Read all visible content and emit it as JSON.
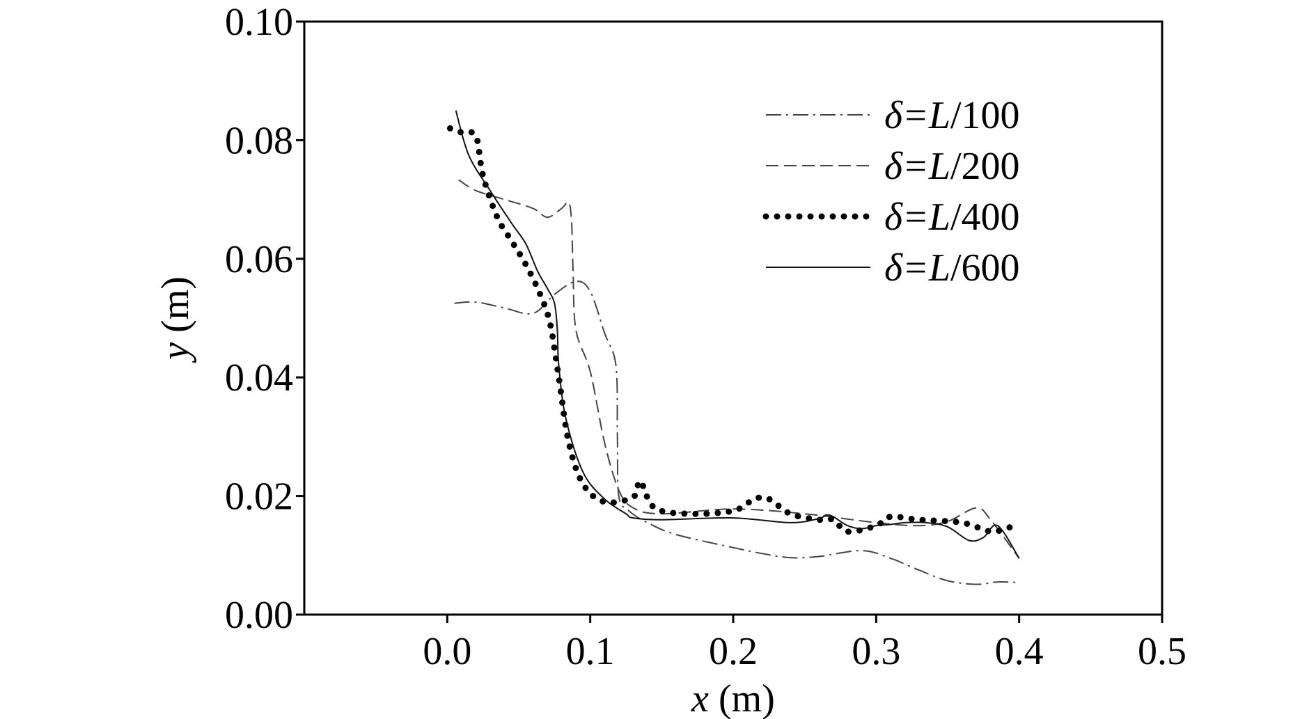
{
  "chart_data": {
    "type": "line",
    "xlabel": {
      "var": "x",
      "unit": " (m)"
    },
    "ylabel": {
      "var": "y",
      "unit": " (m)"
    },
    "xlim": [
      -0.1,
      0.5
    ],
    "ylim": [
      0.0,
      0.1
    ],
    "x_ticks": [
      {
        "value": 0.0,
        "label": "0.0"
      },
      {
        "value": 0.1,
        "label": "0.1"
      },
      {
        "value": 0.2,
        "label": "0.2"
      },
      {
        "value": 0.3,
        "label": "0.3"
      },
      {
        "value": 0.4,
        "label": "0.4"
      },
      {
        "value": 0.5,
        "label": "0.5"
      }
    ],
    "y_ticks": [
      {
        "value": 0.0,
        "label": "0.00"
      },
      {
        "value": 0.02,
        "label": "0.02"
      },
      {
        "value": 0.04,
        "label": "0.04"
      },
      {
        "value": 0.06,
        "label": "0.06"
      },
      {
        "value": 0.08,
        "label": "0.08"
      },
      {
        "value": 0.1,
        "label": "0.10"
      }
    ],
    "grid": false,
    "legend_position": "top-right",
    "series": [
      {
        "name": {
          "pre": "δ=",
          "it": "L",
          "post": "/100"
        },
        "style": "dashdot",
        "color": "#444444",
        "points": [
          [
            0.005,
            0.0525
          ],
          [
            0.02,
            0.0527
          ],
          [
            0.04,
            0.0517
          ],
          [
            0.06,
            0.0508
          ],
          [
            0.075,
            0.054
          ],
          [
            0.09,
            0.0562
          ],
          [
            0.1,
            0.0545
          ],
          [
            0.11,
            0.0475
          ],
          [
            0.118,
            0.042
          ],
          [
            0.119,
            0.03
          ],
          [
            0.12,
            0.02
          ],
          [
            0.127,
            0.0175
          ],
          [
            0.14,
            0.0155
          ],
          [
            0.16,
            0.0135
          ],
          [
            0.2,
            0.0113
          ],
          [
            0.22,
            0.0103
          ],
          [
            0.24,
            0.0096
          ],
          [
            0.26,
            0.0098
          ],
          [
            0.29,
            0.0108
          ],
          [
            0.31,
            0.0095
          ],
          [
            0.33,
            0.0075
          ],
          [
            0.35,
            0.0057
          ],
          [
            0.37,
            0.0051
          ],
          [
            0.385,
            0.0055
          ],
          [
            0.4,
            0.0054
          ]
        ]
      },
      {
        "name": {
          "pre": "δ=",
          "it": "L",
          "post": "/200"
        },
        "style": "dashed",
        "color": "#444444",
        "points": [
          [
            0.008,
            0.0733
          ],
          [
            0.02,
            0.0715
          ],
          [
            0.04,
            0.07
          ],
          [
            0.06,
            0.0685
          ],
          [
            0.07,
            0.067
          ],
          [
            0.08,
            0.0685
          ],
          [
            0.085,
            0.0695
          ],
          [
            0.087,
            0.066
          ],
          [
            0.088,
            0.058
          ],
          [
            0.09,
            0.048
          ],
          [
            0.1,
            0.041
          ],
          [
            0.11,
            0.029
          ],
          [
            0.12,
            0.021
          ],
          [
            0.13,
            0.018
          ],
          [
            0.15,
            0.017
          ],
          [
            0.2,
            0.0178
          ],
          [
            0.25,
            0.017
          ],
          [
            0.3,
            0.0155
          ],
          [
            0.33,
            0.015
          ],
          [
            0.35,
            0.0157
          ],
          [
            0.37,
            0.018
          ],
          [
            0.38,
            0.016
          ],
          [
            0.4,
            0.0095
          ]
        ]
      },
      {
        "name": {
          "pre": "δ=",
          "it": "L",
          "post": "/400"
        },
        "style": "dotted",
        "color": "#000000",
        "points": [
          [
            0.002,
            0.082
          ],
          [
            0.01,
            0.0813
          ],
          [
            0.02,
            0.0807
          ],
          [
            0.025,
            0.074
          ],
          [
            0.035,
            0.067
          ],
          [
            0.045,
            0.063
          ],
          [
            0.055,
            0.059
          ],
          [
            0.065,
            0.054
          ],
          [
            0.072,
            0.049
          ],
          [
            0.078,
            0.04
          ],
          [
            0.085,
            0.029
          ],
          [
            0.095,
            0.022
          ],
          [
            0.11,
            0.019
          ],
          [
            0.13,
            0.0198
          ],
          [
            0.135,
            0.0225
          ],
          [
            0.145,
            0.018
          ],
          [
            0.17,
            0.017
          ],
          [
            0.2,
            0.0175
          ],
          [
            0.215,
            0.0195
          ],
          [
            0.225,
            0.0195
          ],
          [
            0.24,
            0.017
          ],
          [
            0.26,
            0.016
          ],
          [
            0.27,
            0.016
          ],
          [
            0.28,
            0.014
          ],
          [
            0.3,
            0.015
          ],
          [
            0.31,
            0.0165
          ],
          [
            0.33,
            0.016
          ],
          [
            0.36,
            0.0155
          ],
          [
            0.38,
            0.014
          ],
          [
            0.39,
            0.0145
          ],
          [
            0.4,
            0.0152
          ]
        ]
      },
      {
        "name": {
          "pre": "δ=",
          "it": "L",
          "post": "/600"
        },
        "style": "solid",
        "color": "#111111",
        "points": [
          [
            0.006,
            0.085
          ],
          [
            0.015,
            0.0775
          ],
          [
            0.03,
            0.0715
          ],
          [
            0.045,
            0.066
          ],
          [
            0.055,
            0.0625
          ],
          [
            0.063,
            0.058
          ],
          [
            0.07,
            0.055
          ],
          [
            0.075,
            0.0525
          ],
          [
            0.077,
            0.048
          ],
          [
            0.078,
            0.042
          ],
          [
            0.083,
            0.033
          ],
          [
            0.095,
            0.024
          ],
          [
            0.11,
            0.0195
          ],
          [
            0.125,
            0.017
          ],
          [
            0.13,
            0.0163
          ],
          [
            0.15,
            0.016
          ],
          [
            0.2,
            0.0163
          ],
          [
            0.24,
            0.0155
          ],
          [
            0.26,
            0.0162
          ],
          [
            0.265,
            0.0168
          ],
          [
            0.27,
            0.0165
          ],
          [
            0.28,
            0.015
          ],
          [
            0.29,
            0.0145
          ],
          [
            0.3,
            0.015
          ],
          [
            0.31,
            0.0152
          ],
          [
            0.32,
            0.0155
          ],
          [
            0.335,
            0.0155
          ],
          [
            0.35,
            0.0148
          ],
          [
            0.365,
            0.0125
          ],
          [
            0.375,
            0.013
          ],
          [
            0.385,
            0.015
          ],
          [
            0.4,
            0.0095
          ]
        ]
      }
    ]
  }
}
